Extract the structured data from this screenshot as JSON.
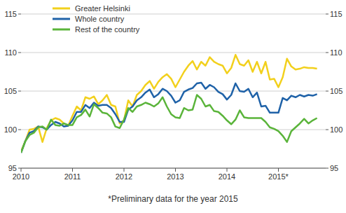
{
  "chart_data": {
    "type": "line",
    "annotations": [
      "*Preliminary data for the year 2015"
    ],
    "categories": [
      "2010",
      null,
      null,
      null,
      null,
      null,
      null,
      null,
      null,
      null,
      null,
      null,
      "2011",
      null,
      null,
      null,
      null,
      null,
      null,
      null,
      null,
      null,
      null,
      null,
      "2012",
      null,
      null,
      null,
      null,
      null,
      null,
      null,
      null,
      null,
      null,
      null,
      "2013",
      null,
      null,
      null,
      null,
      null,
      null,
      null,
      null,
      null,
      null,
      null,
      "2014",
      null,
      null,
      null,
      null,
      null,
      null,
      null,
      null,
      null,
      null,
      null,
      "2015*",
      null,
      null,
      null,
      null,
      null,
      null,
      null,
      null,
      null
    ],
    "series": [
      {
        "name": "Greater Helsinki",
        "color": "#f2d01c",
        "values": [
          97.2,
          98.5,
          100.0,
          100.1,
          100.4,
          98.4,
          100.2,
          101.2,
          101.5,
          101.3,
          100.8,
          100.5,
          101.8,
          103.0,
          102.5,
          104.2,
          104.0,
          104.3,
          103.3,
          103.8,
          104.5,
          103.2,
          103.0,
          100.8,
          101.2,
          103.8,
          103.0,
          104.5,
          105.0,
          105.8,
          106.3,
          105.3,
          106.2,
          106.8,
          107.2,
          106.6,
          105.5,
          106.5,
          107.5,
          108.3,
          108.9,
          107.8,
          108.8,
          108.3,
          109.4,
          108.8,
          108.5,
          108.3,
          107.3,
          108.0,
          109.7,
          108.5,
          108.3,
          109.0,
          107.5,
          108.8,
          107.3,
          108.8,
          106.5,
          106.6,
          105.5,
          106.8,
          109.2,
          108.2,
          107.8,
          107.9,
          108.1,
          108.0,
          108.0,
          107.9
        ]
      },
      {
        "name": "Whole country",
        "color": "#1f62a8",
        "values": [
          97.0,
          98.5,
          99.6,
          99.8,
          100.4,
          100.3,
          100.0,
          100.6,
          101.0,
          100.8,
          100.4,
          100.5,
          101.2,
          102.3,
          102.3,
          103.2,
          102.8,
          103.5,
          103.1,
          103.2,
          103.2,
          102.8,
          102.0,
          101.0,
          101.0,
          102.6,
          103.0,
          103.8,
          104.2,
          104.8,
          105.2,
          104.2,
          104.6,
          105.3,
          105.0,
          104.4,
          103.5,
          103.8,
          104.9,
          105.2,
          105.4,
          106.0,
          106.1,
          105.3,
          105.8,
          105.5,
          104.9,
          104.6,
          103.9,
          104.5,
          106.0,
          105.0,
          104.9,
          105.3,
          104.2,
          104.8,
          103.0,
          103.1,
          102.2,
          102.2,
          102.2,
          104.1,
          103.8,
          104.4,
          104.2,
          104.5,
          104.3,
          104.5,
          104.4,
          104.6
        ]
      },
      {
        "name": "Rest of the country",
        "color": "#5ab43a",
        "values": [
          97.0,
          98.5,
          99.3,
          99.6,
          100.3,
          100.4,
          100.0,
          101.3,
          100.6,
          100.5,
          100.8,
          100.6,
          100.6,
          101.6,
          101.9,
          102.6,
          101.7,
          103.3,
          102.8,
          102.2,
          102.1,
          101.6,
          100.4,
          100.2,
          101.3,
          102.8,
          102.3,
          103.0,
          103.2,
          103.5,
          103.3,
          103.0,
          103.4,
          104.2,
          103.0,
          102.0,
          101.6,
          101.5,
          102.8,
          102.5,
          102.6,
          104.5,
          104.0,
          103.0,
          103.2,
          102.4,
          102.3,
          101.8,
          101.2,
          100.7,
          101.3,
          102.5,
          101.6,
          101.5,
          101.5,
          101.5,
          101.5,
          101.0,
          100.3,
          100.1,
          99.8,
          99.2,
          98.4,
          99.8,
          100.3,
          100.8,
          101.4,
          100.8,
          101.2,
          101.5
        ]
      }
    ],
    "ylim": [
      95,
      115
    ],
    "yticks": [
      95,
      100,
      105,
      110,
      115
    ],
    "y2lim": [
      95,
      115
    ],
    "y2ticks": [
      95,
      100,
      105,
      110,
      115
    ],
    "grid": true,
    "legend": "upper left"
  }
}
